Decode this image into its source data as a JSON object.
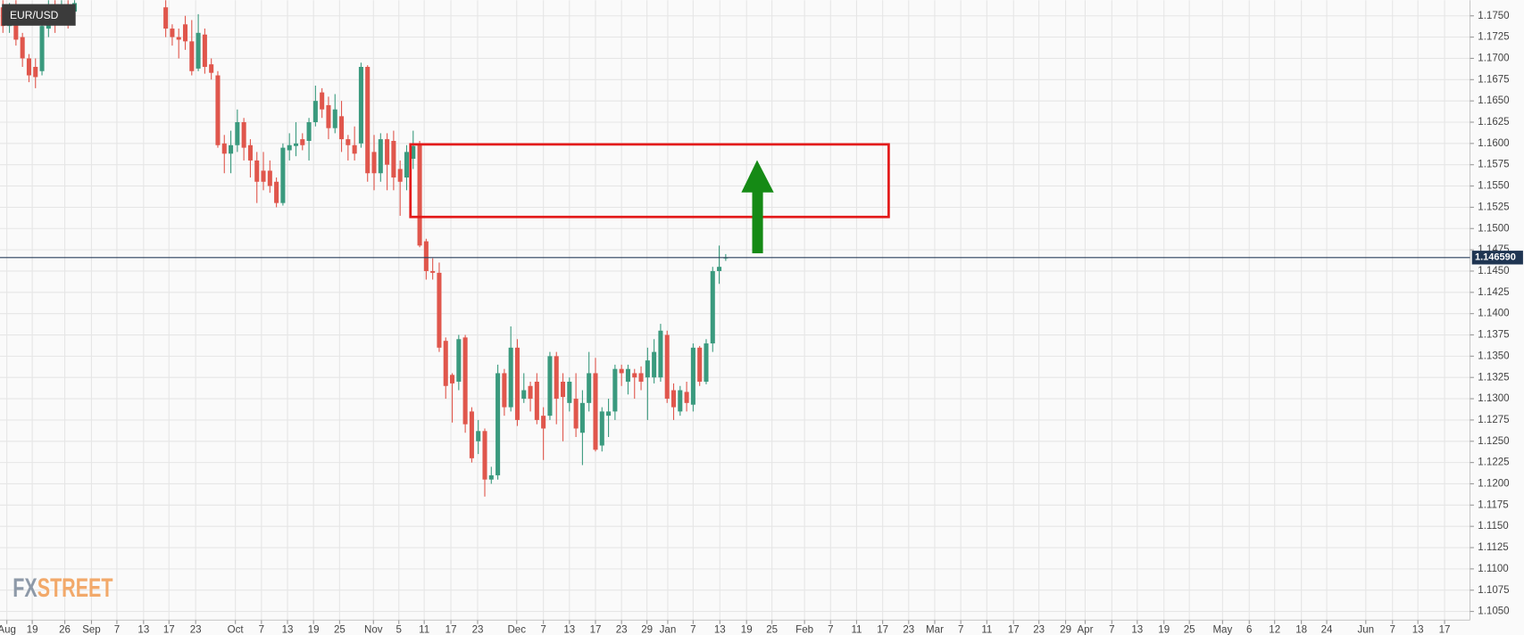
{
  "chart_data": {
    "type": "candlestick",
    "title": "EUR/USD",
    "logo": [
      "FX",
      "STREET"
    ],
    "up_color": "#3a9a7e",
    "down_color": "#e0564c",
    "price_line_color": "#2b3f5c",
    "xlim": [
      -0.45,
      225.3
    ],
    "ylim": [
      1.10398,
      1.17684
    ],
    "grid": true,
    "last_price": {
      "value": 1.14659,
      "label": "1.146590"
    },
    "xticks": [
      {
        "value": 0.6,
        "label": "Aug"
      },
      {
        "value": 4.5,
        "label": "19"
      },
      {
        "value": 9.5,
        "label": "26"
      },
      {
        "value": 13.6,
        "label": "Sep"
      },
      {
        "value": 17.5,
        "label": "7"
      },
      {
        "value": 21.6,
        "label": "13"
      },
      {
        "value": 25.5,
        "label": "17"
      },
      {
        "value": 29.6,
        "label": "23"
      },
      {
        "value": 35.7,
        "label": "Oct"
      },
      {
        "value": 39.7,
        "label": "7"
      },
      {
        "value": 43.7,
        "label": "13"
      },
      {
        "value": 47.7,
        "label": "19"
      },
      {
        "value": 51.7,
        "label": "25"
      },
      {
        "value": 56.9,
        "label": "Nov"
      },
      {
        "value": 60.8,
        "label": "5"
      },
      {
        "value": 64.7,
        "label": "11"
      },
      {
        "value": 68.8,
        "label": "17"
      },
      {
        "value": 72.9,
        "label": "23"
      },
      {
        "value": 78.9,
        "label": "Dec"
      },
      {
        "value": 83,
        "label": "7"
      },
      {
        "value": 87,
        "label": "13"
      },
      {
        "value": 91,
        "label": "17"
      },
      {
        "value": 95,
        "label": "23"
      },
      {
        "value": 98.9,
        "label": "29"
      },
      {
        "value": 102.1,
        "label": "Jan"
      },
      {
        "value": 106,
        "label": "7"
      },
      {
        "value": 110.1,
        "label": "13"
      },
      {
        "value": 114.2,
        "label": "19"
      },
      {
        "value": 118.1,
        "label": "25"
      },
      {
        "value": 123.1,
        "label": "Feb"
      },
      {
        "value": 127.1,
        "label": "7"
      },
      {
        "value": 131.1,
        "label": "11"
      },
      {
        "value": 135.1,
        "label": "17"
      },
      {
        "value": 139.1,
        "label": "23"
      },
      {
        "value": 143.1,
        "label": "Mar"
      },
      {
        "value": 147.1,
        "label": "7"
      },
      {
        "value": 151.1,
        "label": "11"
      },
      {
        "value": 155.2,
        "label": "17"
      },
      {
        "value": 159.1,
        "label": "23"
      },
      {
        "value": 163.2,
        "label": "29"
      },
      {
        "value": 166.2,
        "label": "Apr"
      },
      {
        "value": 170.3,
        "label": "7"
      },
      {
        "value": 174.2,
        "label": "13"
      },
      {
        "value": 178.3,
        "label": "19"
      },
      {
        "value": 182.2,
        "label": "25"
      },
      {
        "value": 187.3,
        "label": "May"
      },
      {
        "value": 191.4,
        "label": "6"
      },
      {
        "value": 195.3,
        "label": "12"
      },
      {
        "value": 199.4,
        "label": "18"
      },
      {
        "value": 203.3,
        "label": "24"
      },
      {
        "value": 209.3,
        "label": "Jun"
      },
      {
        "value": 213.4,
        "label": "7"
      },
      {
        "value": 217.3,
        "label": "13"
      },
      {
        "value": 221.4,
        "label": "17"
      }
    ],
    "yticks": [
      {
        "value": 1.175,
        "label": "1.1750"
      },
      {
        "value": 1.1725,
        "label": "1.1725"
      },
      {
        "value": 1.17,
        "label": "1.1700"
      },
      {
        "value": 1.1675,
        "label": "1.1675"
      },
      {
        "value": 1.165,
        "label": "1.1650"
      },
      {
        "value": 1.1625,
        "label": "1.1625"
      },
      {
        "value": 1.16,
        "label": "1.1600"
      },
      {
        "value": 1.1575,
        "label": "1.1575"
      },
      {
        "value": 1.155,
        "label": "1.1550"
      },
      {
        "value": 1.1525,
        "label": "1.1525"
      },
      {
        "value": 1.15,
        "label": "1.1500"
      },
      {
        "value": 1.1475,
        "label": "1.1475"
      },
      {
        "value": 1.145,
        "label": "1.1450"
      },
      {
        "value": 1.1425,
        "label": "1.1425"
      },
      {
        "value": 1.14,
        "label": "1.1400"
      },
      {
        "value": 1.1375,
        "label": "1.1375"
      },
      {
        "value": 1.135,
        "label": "1.1350"
      },
      {
        "value": 1.1325,
        "label": "1.1325"
      },
      {
        "value": 1.13,
        "label": "1.1300"
      },
      {
        "value": 1.1275,
        "label": "1.1275"
      },
      {
        "value": 1.125,
        "label": "1.1250"
      },
      {
        "value": 1.1225,
        "label": "1.1225"
      },
      {
        "value": 1.12,
        "label": "1.1200"
      },
      {
        "value": 1.1175,
        "label": "1.1175"
      },
      {
        "value": 1.115,
        "label": "1.1150"
      },
      {
        "value": 1.1125,
        "label": "1.1125"
      },
      {
        "value": 1.11,
        "label": "1.1100"
      },
      {
        "value": 1.1075,
        "label": "1.1075"
      },
      {
        "value": 1.105,
        "label": "1.1050"
      }
    ],
    "x": [
      0,
      1,
      2,
      3,
      4,
      5,
      6,
      7,
      8,
      9,
      10,
      11,
      25,
      26,
      27,
      28,
      29,
      30,
      31,
      32,
      33,
      34,
      35,
      36,
      37,
      38,
      39,
      40,
      41,
      42,
      43,
      44,
      45,
      46,
      47,
      48,
      49,
      50,
      51,
      52,
      53,
      54,
      55,
      56,
      57,
      58,
      59,
      60,
      61,
      62,
      63,
      64,
      65,
      66,
      67,
      68,
      69,
      70,
      71,
      72,
      73,
      74,
      75,
      76,
      77,
      78,
      79,
      80,
      81,
      82,
      83,
      84,
      85,
      86,
      87,
      88,
      89,
      90,
      91,
      92,
      93,
      94,
      95,
      96,
      97,
      98,
      99,
      100,
      101,
      102,
      103,
      104,
      105,
      106,
      107,
      108,
      109,
      110,
      111
    ],
    "open": [
      1.176,
      1.1738,
      1.176,
      1.1725,
      1.17,
      1.169,
      1.1685,
      1.1735,
      1.1755,
      1.1745,
      1.176,
      1.1755,
      1.176,
      1.1735,
      1.1725,
      1.174,
      1.172,
      1.1688,
      1.1728,
      1.1693,
      1.168,
      1.16,
      1.1588,
      1.1598,
      1.1625,
      1.1598,
      1.158,
      1.1568,
      1.1568,
      1.1555,
      1.153,
      1.1592,
      1.1597,
      1.1605,
      1.1603,
      1.1625,
      1.166,
      1.1645,
      1.1618,
      1.1632,
      1.1605,
      1.1598,
      1.16,
      1.169,
      1.159,
      1.1565,
      1.1605,
      1.1603,
      1.157,
      1.156,
      1.1582,
      1.1598,
      1.1485,
      1.145,
      1.1448,
      1.1368,
      1.1328,
      1.132,
      1.1372,
      1.1285,
      1.125,
      1.1262,
      1.1205,
      1.121,
      1.133,
      1.129,
      1.136,
      1.13,
      1.1315,
      1.132,
      1.128,
      1.128,
      1.135,
      1.132,
      1.1295,
      1.13,
      1.126,
      1.1295,
      1.133,
      1.1245,
      1.128,
      1.1285,
      1.1335,
      1.132,
      1.133,
      1.133,
      1.1325,
      1.1325,
      1.1325,
      1.1375,
      1.131,
      1.1285,
      1.1308,
      1.1293,
      1.136,
      1.132,
      1.1365,
      1.145,
      1.1465
    ],
    "high": [
      1.177,
      1.1765,
      1.177,
      1.173,
      1.1705,
      1.17,
      1.1745,
      1.177,
      1.177,
      1.177,
      1.1775,
      1.1775,
      1.177,
      1.174,
      1.1735,
      1.175,
      1.1745,
      1.1752,
      1.1735,
      1.17,
      1.1685,
      1.161,
      1.1615,
      1.164,
      1.163,
      1.1605,
      1.159,
      1.159,
      1.158,
      1.156,
      1.16,
      1.1612,
      1.1625,
      1.1612,
      1.163,
      1.1668,
      1.1665,
      1.1655,
      1.1658,
      1.165,
      1.161,
      1.162,
      1.1695,
      1.1692,
      1.161,
      1.1612,
      1.1612,
      1.1615,
      1.158,
      1.1598,
      1.1615,
      1.1603,
      1.1488,
      1.1465,
      1.146,
      1.1372,
      1.133,
      1.1375,
      1.1375,
      1.129,
      1.1275,
      1.1265,
      1.122,
      1.134,
      1.1335,
      1.1385,
      1.137,
      1.133,
      1.132,
      1.133,
      1.129,
      1.1355,
      1.1355,
      1.133,
      1.1325,
      1.133,
      1.131,
      1.1355,
      1.1348,
      1.129,
      1.13,
      1.134,
      1.134,
      1.134,
      1.1335,
      1.1338,
      1.136,
      1.137,
      1.1388,
      1.138,
      1.1318,
      1.1315,
      1.132,
      1.1365,
      1.1362,
      1.137,
      1.1455,
      1.148,
      1.147
    ],
    "low": [
      1.173,
      1.173,
      1.1715,
      1.169,
      1.1672,
      1.1665,
      1.168,
      1.1725,
      1.173,
      1.174,
      1.1735,
      1.1745,
      1.1725,
      1.1715,
      1.17,
      1.171,
      1.168,
      1.1685,
      1.1682,
      1.1675,
      1.1595,
      1.1565,
      1.1565,
      1.159,
      1.158,
      1.156,
      1.153,
      1.1545,
      1.1542,
      1.1525,
      1.1527,
      1.158,
      1.1585,
      1.1592,
      1.158,
      1.162,
      1.163,
      1.1605,
      1.1612,
      1.159,
      1.158,
      1.158,
      1.1595,
      1.1555,
      1.1545,
      1.1555,
      1.1545,
      1.1545,
      1.1515,
      1.1545,
      1.157,
      1.1478,
      1.144,
      1.144,
      1.1355,
      1.13,
      1.1272,
      1.131,
      1.126,
      1.1225,
      1.1235,
      1.1185,
      1.12,
      1.1205,
      1.128,
      1.1285,
      1.1268,
      1.1295,
      1.1285,
      1.127,
      1.1228,
      1.1275,
      1.127,
      1.125,
      1.1285,
      1.1255,
      1.1222,
      1.1285,
      1.1238,
      1.1238,
      1.1255,
      1.1275,
      1.1315,
      1.1305,
      1.13,
      1.131,
      1.1275,
      1.1318,
      1.132,
      1.1295,
      1.1275,
      1.128,
      1.1285,
      1.1285,
      1.1315,
      1.1317,
      1.1355,
      1.1435,
      1.1462
    ],
    "close": [
      1.1738,
      1.1755,
      1.1722,
      1.17,
      1.168,
      1.1678,
      1.1738,
      1.176,
      1.1745,
      1.176,
      1.1755,
      1.1765,
      1.1735,
      1.1725,
      1.1722,
      1.172,
      1.1685,
      1.173,
      1.169,
      1.1683,
      1.1598,
      1.1588,
      1.1598,
      1.1625,
      1.1595,
      1.158,
      1.1555,
      1.1555,
      1.155,
      1.153,
      1.1595,
      1.1598,
      1.16,
      1.1598,
      1.1625,
      1.165,
      1.164,
      1.1618,
      1.164,
      1.1605,
      1.1598,
      1.1588,
      1.169,
      1.1565,
      1.1565,
      1.1605,
      1.1575,
      1.156,
      1.1555,
      1.159,
      1.1597,
      1.148,
      1.145,
      1.1448,
      1.136,
      1.1315,
      1.1318,
      1.137,
      1.127,
      1.123,
      1.1262,
      1.1205,
      1.121,
      1.133,
      1.129,
      1.136,
      1.1275,
      1.131,
      1.13,
      1.1275,
      1.1265,
      1.135,
      1.13,
      1.1302,
      1.132,
      1.1265,
      1.1295,
      1.133,
      1.124,
      1.1285,
      1.1285,
      1.1335,
      1.133,
      1.1335,
      1.1325,
      1.132,
      1.1345,
      1.1355,
      1.138,
      1.13,
      1.129,
      1.131,
      1.1295,
      1.136,
      1.132,
      1.1365,
      1.145,
      1.1455,
      1.1466
    ]
  }
}
